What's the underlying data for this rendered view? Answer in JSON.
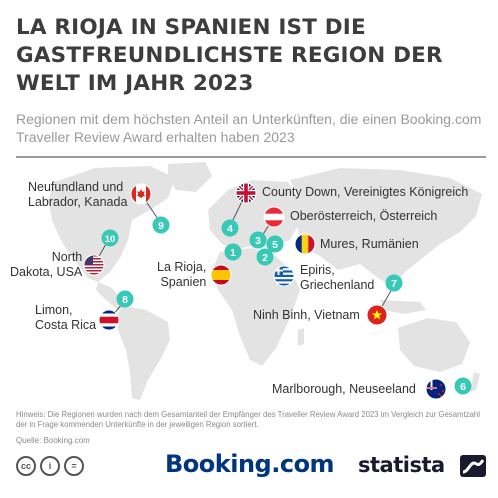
{
  "title": "LA RIOJA IN SPANIEN IST DIE GASTFREUNDLICHSTE REGION DER WELT IM JAHR 2023",
  "subtitle": "Regionen mit dem höchsten Anteil an Unterkünften, die einen Booking.com Traveller Review Award erhalten haben 2023",
  "colors": {
    "marker": "#38c9b6",
    "land": "#e3e3e3",
    "text": "#333333"
  },
  "chart_data": {
    "type": "map",
    "regions": [
      {
        "rank": 1,
        "name": "La Rioja, Spanien",
        "lines": [
          "La Rioja,",
          "Spanien"
        ],
        "flag": "spain-flag-icon"
      },
      {
        "rank": 2,
        "name": "Epiris, Griechenland",
        "lines": [
          "Epiris,",
          "Griechenland"
        ],
        "flag": "greece-flag-icon"
      },
      {
        "rank": 3,
        "name": "Oberösterreich, Österreich",
        "lines": [
          "Oberösterreich, Österreich"
        ],
        "flag": "austria-flag-icon"
      },
      {
        "rank": 4,
        "name": "County Down, Vereinigtes Königreich",
        "lines": [
          "County Down, Vereinigtes Königreich"
        ],
        "flag": "uk-flag-icon"
      },
      {
        "rank": 5,
        "name": "Mures, Rumänien",
        "lines": [
          "Mures, Rumänien"
        ],
        "flag": "romania-flag-icon"
      },
      {
        "rank": 6,
        "name": "Marlborough, Neuseeland",
        "lines": [
          "Marlborough, Neuseeland"
        ],
        "flag": "new-zealand-flag-icon"
      },
      {
        "rank": 7,
        "name": "Ninh Binh, Vietnam",
        "lines": [
          "Ninh Binh, Vietnam"
        ],
        "flag": "vietnam-flag-icon"
      },
      {
        "rank": 8,
        "name": "Limon, Costa Rica",
        "lines": [
          "Limon,",
          "Costa Rica"
        ],
        "flag": "costa-rica-flag-icon"
      },
      {
        "rank": 9,
        "name": "Neufundland und Labrador, Kanada",
        "lines": [
          "Neufundland und",
          "Labrador, Kanada"
        ],
        "flag": "canada-flag-icon"
      },
      {
        "rank": 10,
        "name": "North Dakota, USA",
        "lines": [
          "North",
          "Dakota, USA"
        ],
        "flag": "usa-flag-icon"
      }
    ]
  },
  "footer": {
    "note": "Hinweis: Die Regionen wurden nach dem Gesamtanteil der Empfänger des Traveller Review Award 2023 im Vergleich zur Gesamtzahl der in Frage kommenden Unterkünfte in der jeweiligen Region sortiert.",
    "source": "Quelle: Booking.com",
    "booking_logo": "Booking.com",
    "statista_logo": "statista",
    "license_icons": [
      "cc-icon",
      "by-icon",
      "nd-icon"
    ],
    "license_glyphs": [
      "cc",
      "i",
      "="
    ]
  }
}
